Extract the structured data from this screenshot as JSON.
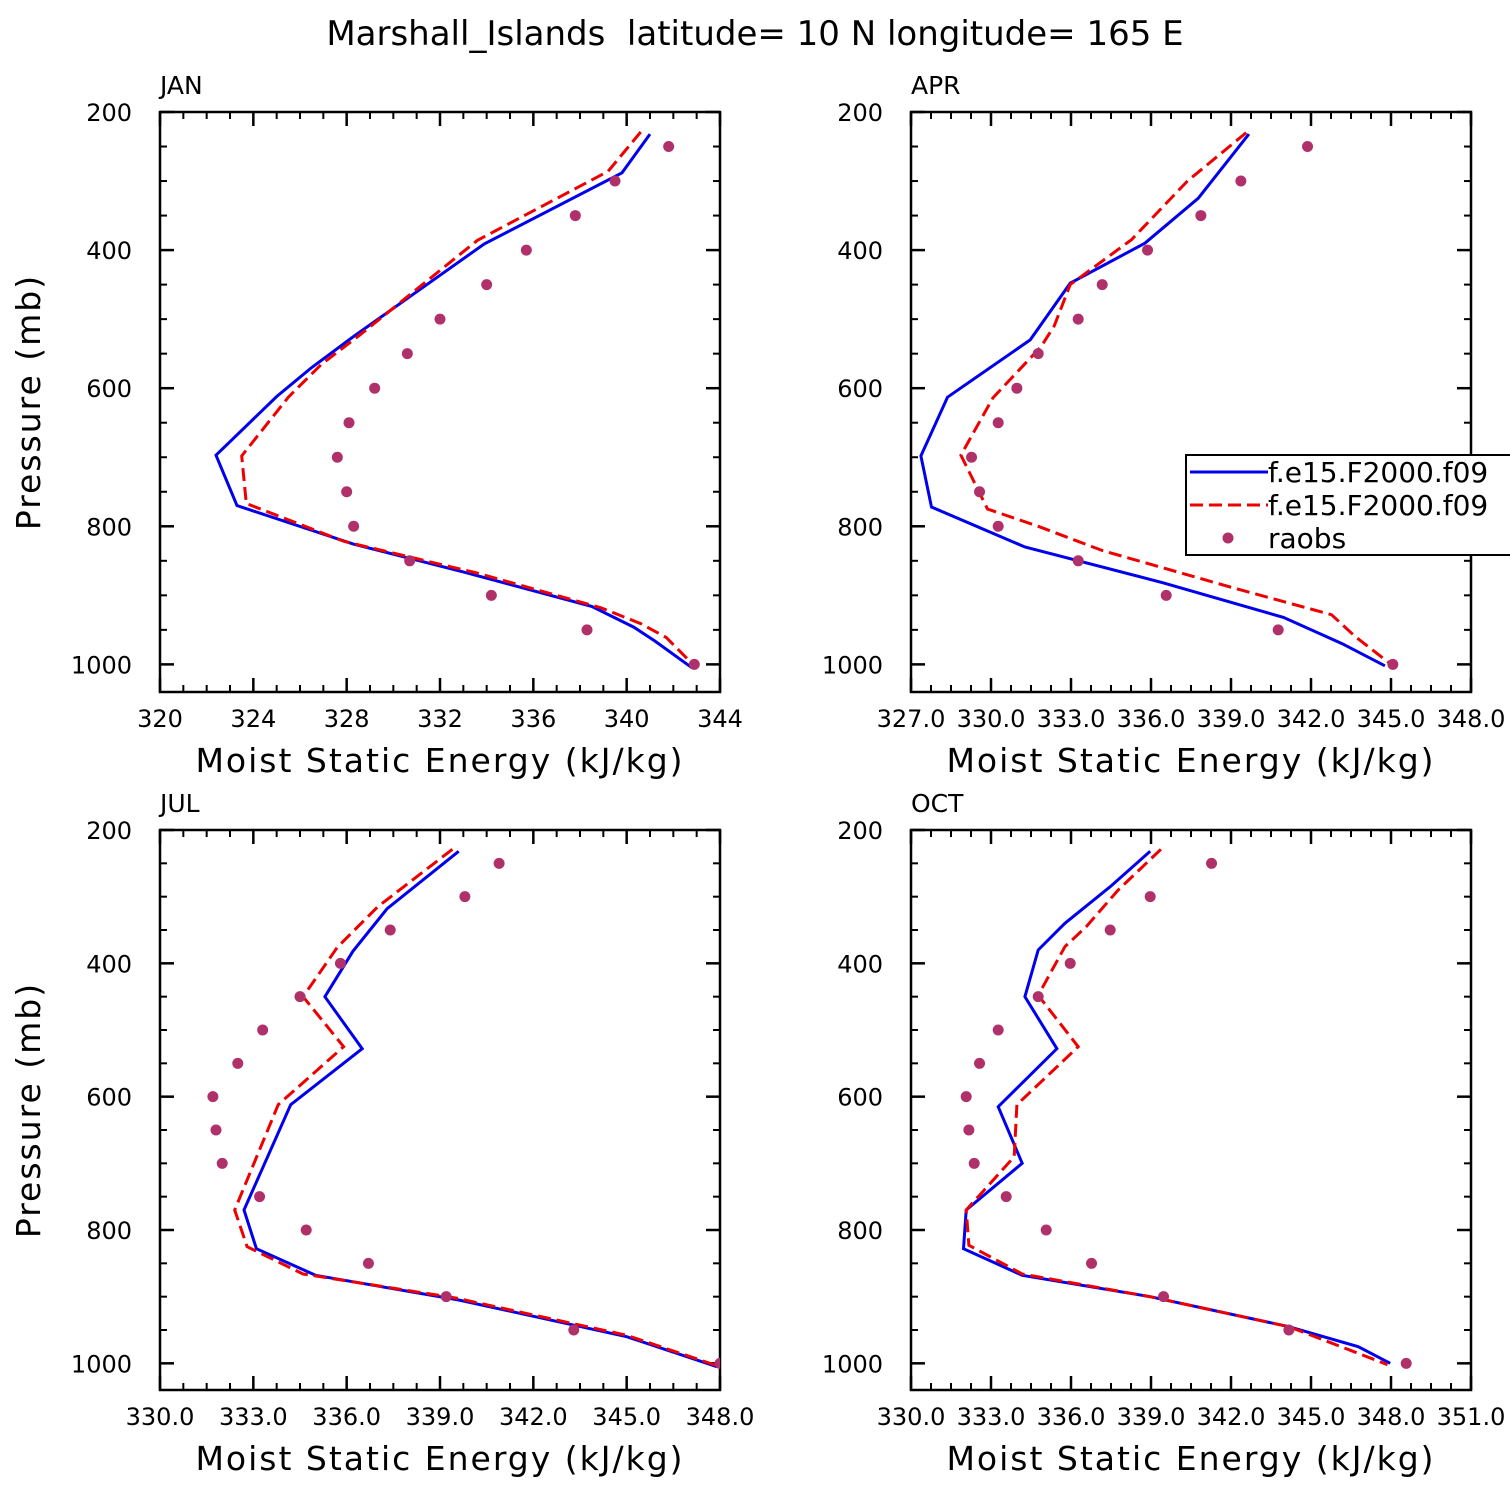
{
  "page_title": "Marshall_Islands  latitude= 10 N longitude= 165 E",
  "colors": {
    "model_a": "#0000ee",
    "model_b": "#ee0000",
    "obs": "#b0306a"
  },
  "legend": {
    "entries": [
      {
        "label": "f.e15.F2000.f09",
        "style": "solid"
      },
      {
        "label": "f.e15.F2000.f09",
        "style": "dashed"
      },
      {
        "label": "raobs",
        "style": "dot"
      }
    ]
  },
  "chart_data": [
    {
      "type": "line",
      "panel": "JAN",
      "title": "JAN",
      "xlabel": "Moist Static Energy (kJ/kg)",
      "ylabel": "Pressure (mb)",
      "xlim": [
        320,
        344
      ],
      "ylim": [
        1040,
        200
      ],
      "xticks": [
        320,
        324,
        328,
        332,
        336,
        340,
        344
      ],
      "xtick_labels": [
        "320",
        "324",
        "328",
        "332",
        "336",
        "340",
        "344"
      ],
      "yticks": [
        200,
        400,
        600,
        800,
        1000
      ],
      "ytick_labels": [
        "200",
        "400",
        "600",
        "800",
        "1000"
      ],
      "series": [
        {
          "name": "f.e15.F2000.f09 (solid)",
          "style": "solid",
          "x": [
            341.0,
            339.8,
            333.9,
            328.3,
            326.5,
            325.0,
            322.4,
            323.3,
            328.3,
            333.0,
            338.5,
            340.3,
            341.2,
            342.8
          ],
          "y": [
            232,
            288,
            391,
            525,
            570,
            612,
            697,
            770,
            826,
            866,
            916,
            946,
            966,
            1005
          ]
        },
        {
          "name": "f.e15.F2000.f09 (dashed)",
          "style": "dashed",
          "x": [
            340.6,
            339.2,
            333.6,
            328.6,
            326.9,
            325.5,
            323.5,
            323.7,
            327.9,
            333.5,
            338.9,
            340.6,
            341.7,
            342.9
          ],
          "y": [
            229,
            286,
            386,
            522,
            566,
            613,
            698,
            767,
            822,
            867,
            918,
            941,
            961,
            1002
          ]
        },
        {
          "name": "raobs",
          "style": "dot",
          "x": [
            341.8,
            339.5,
            337.8,
            335.7,
            334.0,
            332.0,
            330.6,
            329.2,
            328.1,
            327.6,
            328.0,
            328.3,
            330.7,
            334.2,
            338.3,
            342.9
          ],
          "y": [
            250,
            300,
            350,
            400,
            450,
            500,
            550,
            600,
            650,
            700,
            750,
            800,
            850,
            900,
            950,
            1000
          ]
        }
      ]
    },
    {
      "type": "line",
      "panel": "APR",
      "title": "APR",
      "xlabel": "Moist Static Energy (kJ/kg)",
      "ylabel": "",
      "xlim": [
        327.03,
        348.03
      ],
      "ylim": [
        1040,
        200
      ],
      "xticks": [
        327.03,
        330.03,
        333.03,
        336.03,
        339.03,
        342.03,
        345.03,
        348.03
      ],
      "xtick_labels": [
        "327.0",
        "330.0",
        "333.0",
        "336.0",
        "339.0",
        "342.0",
        "345.0",
        "348.0"
      ],
      "yticks": [
        200,
        400,
        600,
        800,
        1000
      ],
      "ytick_labels": [
        "200",
        "400",
        "600",
        "800",
        "1000"
      ],
      "series": [
        {
          "name": "f.e15.F2000.f09 (solid)",
          "style": "solid",
          "x": [
            339.7,
            337.8,
            335.8,
            333.0,
            331.5,
            328.4,
            327.4,
            327.8,
            331.3,
            336.5,
            341.0,
            343.2,
            344.8
          ],
          "y": [
            232,
            325,
            390,
            448,
            530,
            613,
            698,
            772,
            830,
            882,
            932,
            970,
            1002
          ]
        },
        {
          "name": "f.e15.F2000.f09 (dashed)",
          "style": "dashed",
          "x": [
            339.6,
            337.4,
            335.3,
            333.0,
            332.4,
            331.9,
            330.1,
            328.9,
            329.9,
            331.8,
            334.2,
            339.0,
            342.8,
            343.7,
            345.2
          ],
          "y": [
            230,
            300,
            385,
            450,
            510,
            540,
            614,
            697,
            775,
            800,
            835,
            888,
            928,
            960,
            1005
          ]
        },
        {
          "name": "raobs",
          "style": "dot",
          "x": [
            341.9,
            339.4,
            337.9,
            335.9,
            334.2,
            333.3,
            331.8,
            331.0,
            330.3,
            329.3,
            329.6,
            330.3,
            333.3,
            336.6,
            340.8,
            345.1
          ],
          "y": [
            250,
            300,
            350,
            400,
            450,
            500,
            550,
            600,
            650,
            700,
            750,
            800,
            850,
            900,
            950,
            1000
          ]
        }
      ]
    },
    {
      "type": "line",
      "panel": "JUL",
      "title": "JUL",
      "xlabel": "Moist Static Energy (kJ/kg)",
      "ylabel": "Pressure (mb)",
      "xlim": [
        330.0,
        348.0
      ],
      "ylim": [
        1040,
        200
      ],
      "xticks": [
        330,
        333,
        336,
        339,
        342,
        345,
        348
      ],
      "xtick_labels": [
        "330.0",
        "333.0",
        "336.0",
        "339.0",
        "342.0",
        "345.0",
        "348.0"
      ],
      "yticks": [
        200,
        400,
        600,
        800,
        1000
      ],
      "ytick_labels": [
        "200",
        "400",
        "600",
        "800",
        "1000"
      ],
      "series": [
        {
          "name": "f.e15.F2000.f09 (solid)",
          "style": "solid",
          "x": [
            339.6,
            337.3,
            336.2,
            335.3,
            336.5,
            334.2,
            332.7,
            333.1,
            335.0,
            339.6,
            345.0,
            347.9
          ],
          "y": [
            232,
            318,
            382,
            450,
            528,
            612,
            770,
            828,
            868,
            905,
            960,
            1005
          ]
        },
        {
          "name": "f.e15.F2000.f09 (dashed)",
          "style": "dashed",
          "x": [
            339.4,
            337.0,
            335.7,
            334.6,
            335.9,
            333.8,
            332.4,
            332.8,
            334.6,
            339.5,
            345.0,
            348.0
          ],
          "y": [
            229,
            315,
            376,
            450,
            525,
            612,
            770,
            825,
            866,
            902,
            958,
            1005
          ]
        },
        {
          "name": "raobs",
          "style": "dot",
          "x": [
            340.9,
            339.8,
            337.4,
            335.8,
            334.5,
            333.3,
            332.5,
            331.7,
            331.8,
            332.0,
            333.2,
            334.7,
            336.7,
            339.2,
            343.3,
            348.0
          ],
          "y": [
            250,
            300,
            350,
            400,
            450,
            500,
            550,
            600,
            650,
            700,
            750,
            800,
            850,
            900,
            950,
            1000
          ]
        }
      ]
    },
    {
      "type": "line",
      "panel": "OCT",
      "title": "OCT",
      "xlabel": "Moist Static Energy (kJ/kg)",
      "ylabel": "",
      "xlim": [
        330.03,
        351.03
      ],
      "ylim": [
        1040,
        200
      ],
      "xticks": [
        330.03,
        333.03,
        336.03,
        339.03,
        342.03,
        345.03,
        348.03,
        351.03
      ],
      "xtick_labels": [
        "330.0",
        "333.0",
        "336.0",
        "339.0",
        "342.0",
        "345.0",
        "348.0",
        "351.0"
      ],
      "yticks": [
        200,
        400,
        600,
        800,
        1000
      ],
      "ytick_labels": [
        "200",
        "400",
        "600",
        "800",
        "1000"
      ],
      "series": [
        {
          "name": "f.e15.F2000.f09 (solid)",
          "style": "solid",
          "x": [
            339.0,
            337.5,
            335.8,
            334.8,
            334.3,
            335.5,
            333.3,
            334.2,
            332.1,
            332.0,
            334.2,
            339.0,
            344.2,
            346.8,
            348.0
          ],
          "y": [
            232,
            285,
            340,
            380,
            450,
            528,
            615,
            700,
            770,
            828,
            868,
            900,
            945,
            975,
            1000
          ]
        },
        {
          "name": "f.e15.F2000.f09 (dashed)",
          "style": "dashed",
          "x": [
            339.4,
            337.8,
            336.6,
            335.8,
            334.8,
            336.3,
            334.0,
            333.9,
            332.1,
            332.2,
            334.2,
            339.0,
            344.2,
            346.8,
            347.9
          ],
          "y": [
            229,
            290,
            345,
            375,
            448,
            525,
            612,
            690,
            770,
            823,
            866,
            900,
            945,
            985,
            1002
          ]
        },
        {
          "name": "raobs",
          "style": "dot",
          "x": [
            341.3,
            339.0,
            337.5,
            336.0,
            334.8,
            333.3,
            332.6,
            332.1,
            332.2,
            332.4,
            333.6,
            335.1,
            336.8,
            339.5,
            344.2,
            348.6
          ],
          "y": [
            250,
            300,
            350,
            400,
            450,
            500,
            550,
            600,
            650,
            700,
            750,
            800,
            850,
            900,
            950,
            1000
          ]
        }
      ]
    }
  ]
}
